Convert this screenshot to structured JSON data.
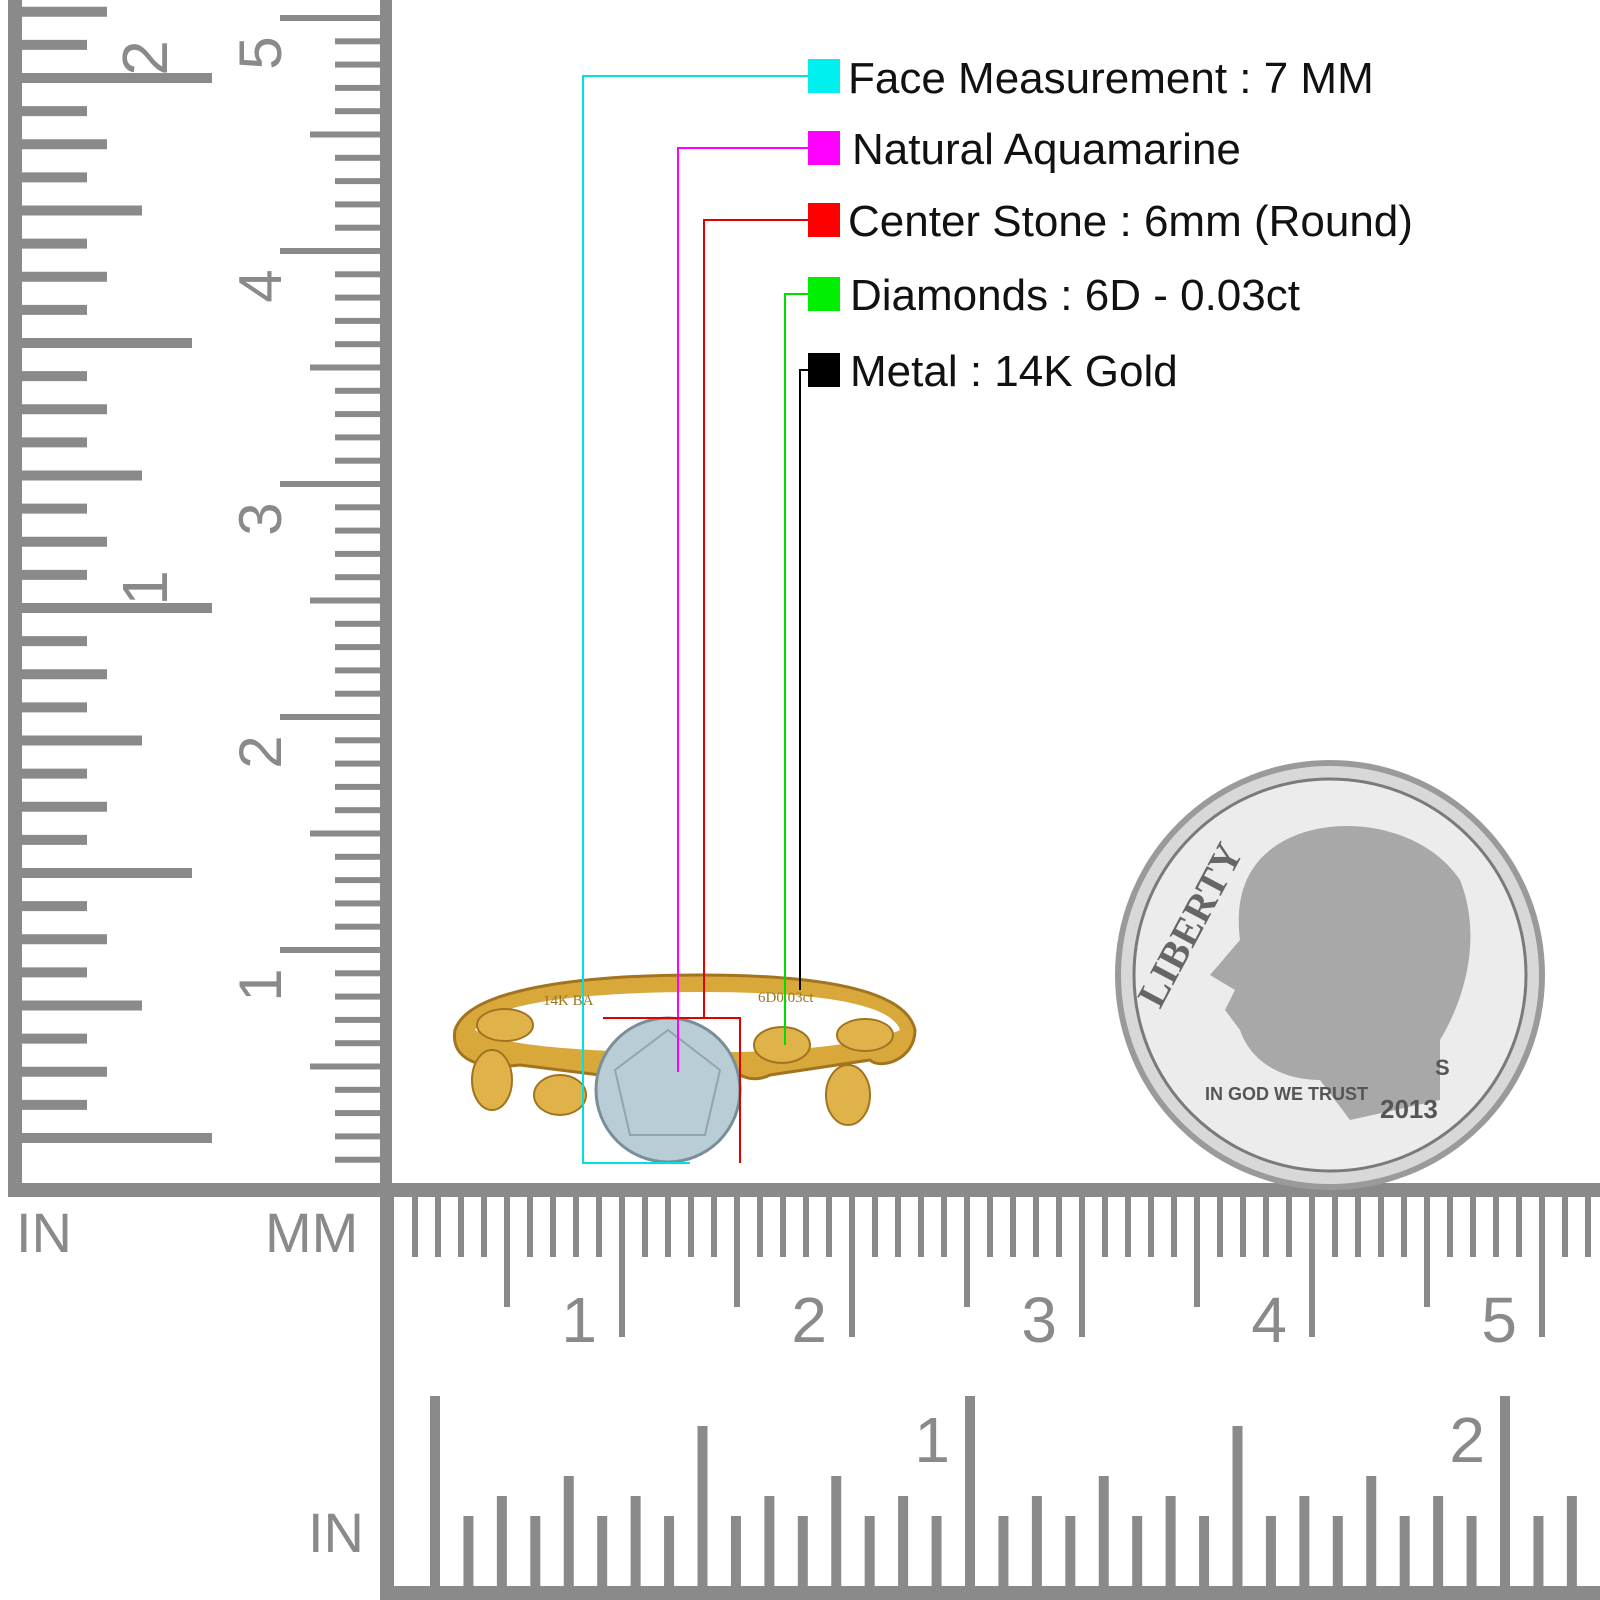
{
  "legend": [
    {
      "label": "Face Measurement : 7 MM",
      "color": "#00f0f0"
    },
    {
      "label": "Natural Aquamarine",
      "color": "#ff00ff"
    },
    {
      "label": "Center Stone : 6mm (Round)",
      "color": "#ff0000"
    },
    {
      "label": "Diamonds : 6D - 0.03ct",
      "color": "#00ee00"
    },
    {
      "label": "Metal : 14K Gold",
      "color": "#000000"
    }
  ],
  "rulers": {
    "left_in_label": "IN",
    "mm_label": "MM",
    "bottom_in_label": "IN",
    "vertical_cm_labels": [
      "1",
      "2",
      "3",
      "4",
      "5"
    ],
    "vertical_in_labels": [
      "1",
      "2"
    ],
    "horizontal_cm_labels": [
      "1",
      "2",
      "3",
      "4",
      "5"
    ],
    "horizontal_in_labels": [
      "1",
      "2"
    ],
    "ruler_color": "#8a8a8a"
  },
  "ring": {
    "engraving_left": "14K BA",
    "engraving_right": "6D0.03ct",
    "metal_color": "#d9a83a",
    "stone_color": "#b8cdd6"
  },
  "coin": {
    "text_liberty": "LIBERTY",
    "text_motto": "IN GOD WE TRUST",
    "text_year": "2013",
    "text_mint": "S"
  }
}
